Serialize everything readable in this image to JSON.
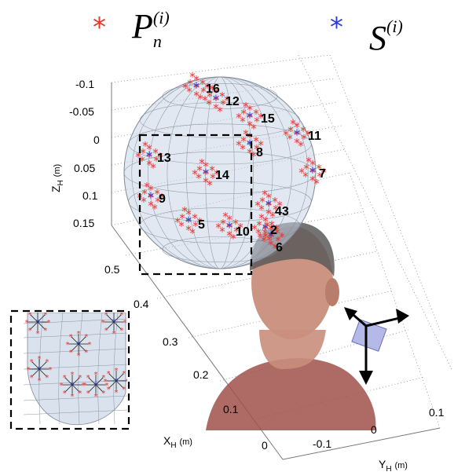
{
  "legend": {
    "red_star": "*",
    "red_symbol_base": "P",
    "red_symbol_sub": "n",
    "red_symbol_sup": "(i)",
    "blue_star": "*",
    "blue_symbol_base": "S",
    "blue_symbol_sup": "(i)",
    "red_color": "#e8342a",
    "blue_color": "#2b3fd8"
  },
  "axes": {
    "z_label": "Z",
    "z_sub": "H",
    "z_unit": "(m)",
    "z_ticks": [
      "-0.1",
      "-0.05",
      "0",
      "0.05",
      "0.1",
      "0.15"
    ],
    "x_label": "X",
    "x_sub": "H",
    "x_unit": "(m)",
    "x_ticks": [
      "0.5",
      "0.4",
      "0.3",
      "0.2",
      "0.1",
      "0"
    ],
    "y_label": "Y",
    "y_sub": "H",
    "y_unit": "(m)",
    "y_ticks": [
      "-0.1",
      "0",
      "0.1"
    ]
  },
  "points": {
    "labels": [
      "16",
      "12",
      "15",
      "11",
      "8",
      "13",
      "14",
      "7",
      "9",
      "43",
      "5",
      "10",
      "2",
      "6"
    ],
    "marker_color": "#e8342a",
    "center_color": "#2b3fd8"
  },
  "colors": {
    "sphere_fill": "#c9d6e6",
    "sphere_grid": "#7f8a99",
    "skin": "#c98e7c",
    "shirt": "#a0504a",
    "hair": "#5b5b5b"
  }
}
